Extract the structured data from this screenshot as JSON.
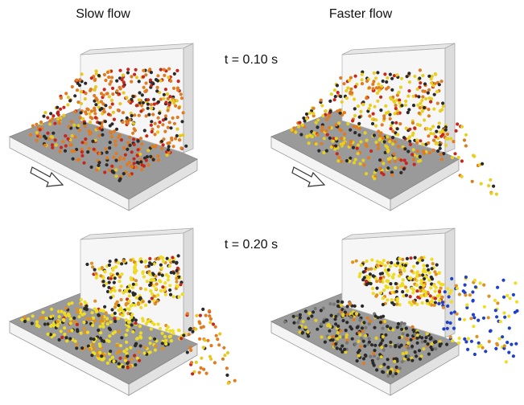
{
  "columns": [
    "Slow flow",
    "Faster flow"
  ],
  "rows": [
    "t = 0.10 s",
    "t = 0.20 s"
  ]
}
